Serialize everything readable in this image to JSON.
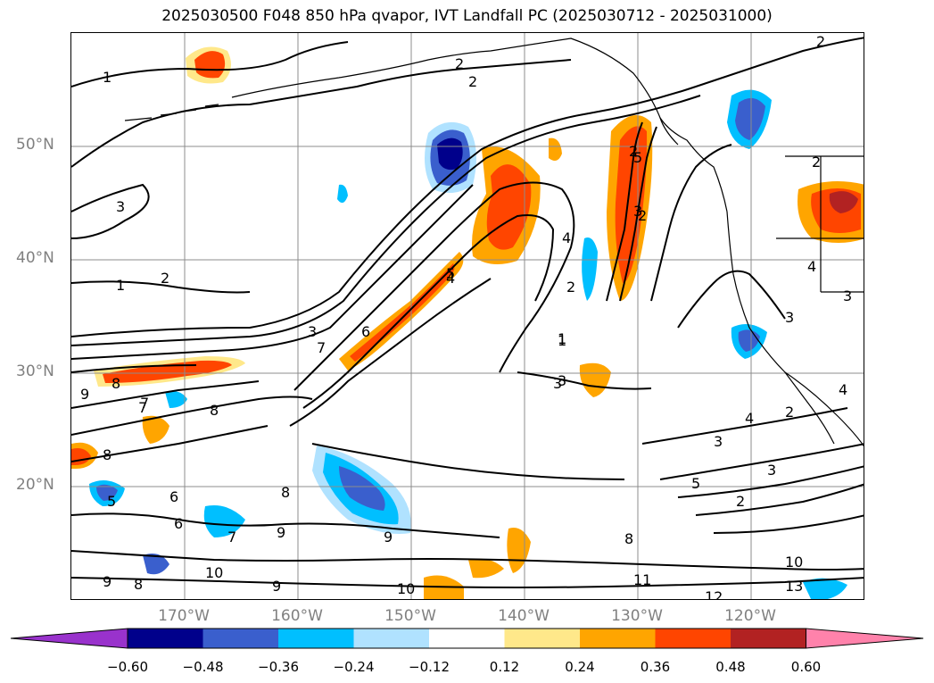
{
  "title": "2025030500 F048 850 hPa qvapor, IVT Landfall PC (2025030712 - 2025031000)",
  "lat_labels": [
    "50°N",
    "40°N",
    "30°N",
    "20°N"
  ],
  "lon_labels": [
    "170°W",
    "160°W",
    "150°W",
    "140°W",
    "130°W",
    "120°W"
  ],
  "colorbar": {
    "tick_labels": [
      "−0.60",
      "−0.48",
      "−0.36",
      "−0.24",
      "−0.12",
      "0.12",
      "0.24",
      "0.36",
      "0.48",
      "0.60"
    ],
    "colors": [
      "#9932cc",
      "#00008b",
      "#3a5fcd",
      "#00bfff",
      "#b0e2ff",
      "#ffffff",
      "#ffe88a",
      "#ffa500",
      "#ff4500",
      "#b22222",
      "#ff82ab"
    ],
    "extend": "both"
  },
  "contour_labels": [
    "2",
    "1",
    "2",
    "3",
    "2",
    "1",
    "2",
    "5",
    "3",
    "2",
    "1",
    "2",
    "3",
    "4",
    "5",
    "4",
    "3",
    "6",
    "7",
    "8",
    "9",
    "8",
    "7",
    "8",
    "6",
    "5",
    "9",
    "8",
    "6",
    "9",
    "10",
    "7",
    "7",
    "8",
    "9",
    "10",
    "8",
    "9",
    "11",
    "10",
    "13",
    "12",
    "3",
    "4",
    "2",
    "5",
    "3",
    "3",
    "2",
    "1",
    "2",
    "2",
    "4",
    "3",
    "3",
    "4",
    "4"
  ],
  "map_style": {
    "contour_color": "#000000",
    "grid_color": "#8c8c8c",
    "coastline_color": "#000000",
    "frame_color": "#000000"
  }
}
